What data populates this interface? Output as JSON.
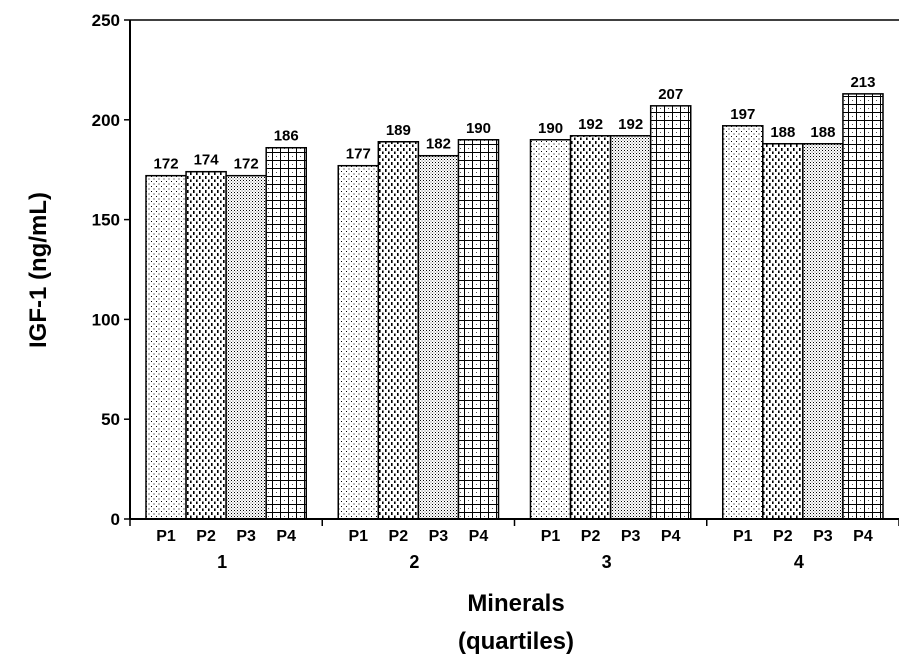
{
  "chart_data": {
    "type": "bar",
    "ylabel": "IGF-1 (ng/mL)",
    "xlabel_line1": "Minerals",
    "xlabel_line2": "(quartiles)",
    "ylim": [
      0,
      250
    ],
    "yticks": [
      0,
      50,
      100,
      150,
      200,
      250
    ],
    "grid": false,
    "groups": [
      {
        "label": "1",
        "bars": [
          {
            "sub": "P1",
            "value": 172
          },
          {
            "sub": "P2",
            "value": 174
          },
          {
            "sub": "P3",
            "value": 172
          },
          {
            "sub": "P4",
            "value": 186
          }
        ]
      },
      {
        "label": "2",
        "bars": [
          {
            "sub": "P1",
            "value": 177
          },
          {
            "sub": "P2",
            "value": 189
          },
          {
            "sub": "P3",
            "value": 182
          },
          {
            "sub": "P4",
            "value": 190
          }
        ]
      },
      {
        "label": "3",
        "bars": [
          {
            "sub": "P1",
            "value": 190
          },
          {
            "sub": "P2",
            "value": 192
          },
          {
            "sub": "P3",
            "value": 192
          },
          {
            "sub": "P4",
            "value": 207
          }
        ]
      },
      {
        "label": "4",
        "bars": [
          {
            "sub": "P1",
            "value": 197
          },
          {
            "sub": "P2",
            "value": 188
          },
          {
            "sub": "P3",
            "value": 188
          },
          {
            "sub": "P4",
            "value": 213
          }
        ]
      }
    ]
  }
}
